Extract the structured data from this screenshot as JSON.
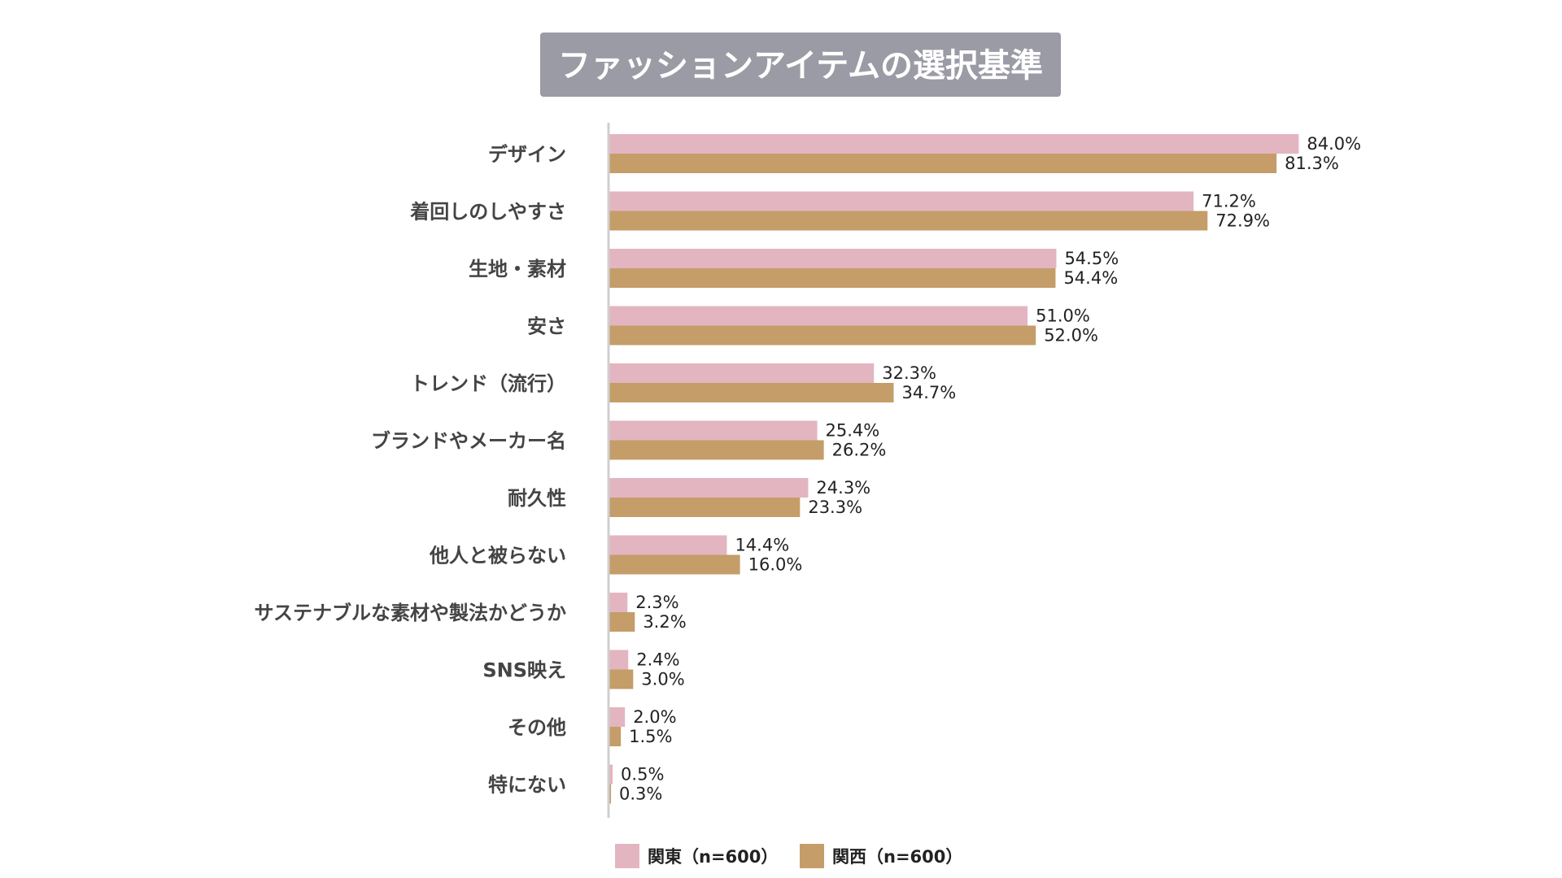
{
  "chart_data": {
    "type": "bar",
    "orientation": "horizontal",
    "title": "ファッションアイテムの選択基準",
    "categories": [
      "デザイン",
      "着回しのしやすさ",
      "生地・素材",
      "安さ",
      "トレンド（流行）",
      "ブランドやメーカー名",
      "耐久性",
      "他人と被らない",
      "サステナブルな素材や製法かどうか",
      "SNS映え",
      "その他",
      "特にない"
    ],
    "series": [
      {
        "name": "関東（n=600）",
        "color": "#e3b5c0",
        "values": [
          84.0,
          71.2,
          54.5,
          51.0,
          32.3,
          25.4,
          24.3,
          14.4,
          2.3,
          2.4,
          2.0,
          0.5
        ],
        "labels": [
          "84.0%",
          "71.2%",
          "54.5%",
          "51.0%",
          "32.3%",
          "25.4%",
          "24.3%",
          "14.4%",
          "2.3%",
          "2.4%",
          "2.0%",
          "0.5%"
        ]
      },
      {
        "name": "関西（n=600）",
        "color": "#c49d69",
        "values": [
          81.3,
          72.9,
          54.4,
          52.0,
          34.7,
          26.2,
          23.3,
          16.0,
          3.2,
          3.0,
          1.5,
          0.3
        ],
        "labels": [
          "81.3%",
          "72.9%",
          "54.4%",
          "52.0%",
          "34.7%",
          "26.2%",
          "23.3%",
          "16.0%",
          "3.2%",
          "3.0%",
          "1.5%",
          "0.3%"
        ]
      }
    ],
    "xlim": [
      0,
      100
    ],
    "unit": "%",
    "grid": false,
    "legend_position": "bottom-center"
  }
}
